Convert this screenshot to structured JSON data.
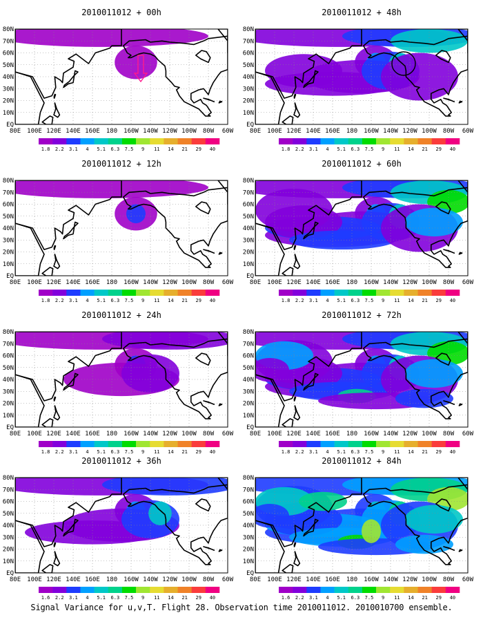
{
  "figure": {
    "caption": "Signal Variance for u,v,T. Flight 28. Observation time 2010011012. 2010010700 ensemble."
  },
  "map_axes": {
    "lon_labels": [
      "80E",
      "100E",
      "120E",
      "140E",
      "160E",
      "180",
      "160W",
      "140W",
      "120W",
      "100W",
      "80W",
      "60W"
    ],
    "lat_labels": [
      "EQ",
      "10N",
      "20N",
      "30N",
      "40N",
      "50N",
      "60N",
      "70N",
      "80N"
    ]
  },
  "colorbar": {
    "labels": [
      "1.8",
      "2.2",
      "3.1",
      "4",
      "5.1",
      "6.3",
      "7.5",
      "9",
      "11",
      "14",
      "21",
      "29",
      "40"
    ],
    "labels_last_row": [
      "1.6",
      "2.2",
      "3.1",
      "4",
      "5.1",
      "6.3",
      "7.5",
      "9",
      "11",
      "14",
      "21",
      "29",
      "40"
    ],
    "colors": [
      "#a000c8",
      "#8200dc",
      "#1e3cff",
      "#00a0ff",
      "#00c8c8",
      "#00d28c",
      "#00dc00",
      "#a0e632",
      "#e6dc32",
      "#e6af2d",
      "#f08228",
      "#fa3c3c",
      "#f00082"
    ]
  },
  "panels": [
    {
      "title": "2010011012 + 00h",
      "lead_hours": 0,
      "intensity": 0.0
    },
    {
      "title": "2010011012 + 48h",
      "lead_hours": 48,
      "intensity": 0.55
    },
    {
      "title": "2010011012 + 12h",
      "lead_hours": 12,
      "intensity": 0.15
    },
    {
      "title": "2010011012 + 60h",
      "lead_hours": 60,
      "intensity": 0.7
    },
    {
      "title": "2010011012 + 24h",
      "lead_hours": 24,
      "intensity": 0.3
    },
    {
      "title": "2010011012 + 72h",
      "lead_hours": 72,
      "intensity": 0.85
    },
    {
      "title": "2010011012 + 36h",
      "lead_hours": 36,
      "intensity": 0.45
    },
    {
      "title": "2010011012 + 84h",
      "lead_hours": 84,
      "intensity": 1.0
    }
  ]
}
